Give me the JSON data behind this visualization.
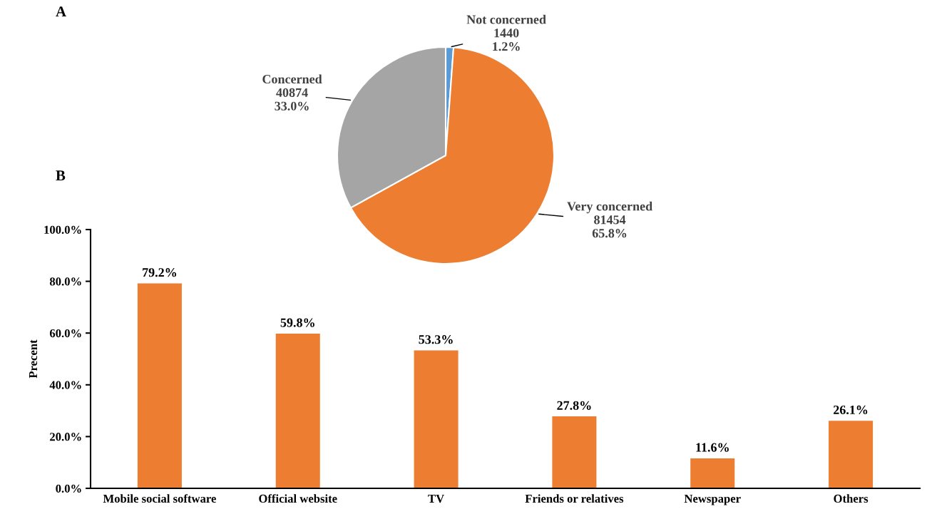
{
  "chart_data": [
    {
      "type": "pie",
      "title": "A",
      "categories": [
        "Not concerned",
        "Very concerned",
        "Concerned"
      ],
      "values": [
        1440,
        81454,
        40874
      ],
      "value_labels": [
        "1440\n1.2%",
        "81454\n65.8%",
        "40874\n33.0%"
      ],
      "colors": [
        "#5b9bd5",
        "#ed7d31",
        "#a5a5a5"
      ]
    },
    {
      "type": "bar",
      "title": "B",
      "ylabel": "Precent",
      "categories": [
        "Mobile social software",
        "Official website",
        "TV",
        "Friends or relatives",
        "Newspaper",
        "Others"
      ],
      "values": [
        79.2,
        59.8,
        53.3,
        27.8,
        11.6,
        26.1
      ],
      "value_labels": [
        "79.2%",
        "59.8%",
        "53.3%",
        "27.8%",
        "11.6%",
        "26.1%"
      ],
      "color": "#ed7d31",
      "ylim": [
        0,
        100
      ],
      "yticks": [
        {
          "value": 0,
          "label": "0.0%"
        },
        {
          "value": 20,
          "label": "20.0%"
        },
        {
          "value": 40,
          "label": "40.0%"
        },
        {
          "value": 60,
          "label": "60.0%"
        },
        {
          "value": 80,
          "label": "80.0%"
        },
        {
          "value": 100,
          "label": "100.0%"
        }
      ],
      "grid": false
    }
  ]
}
